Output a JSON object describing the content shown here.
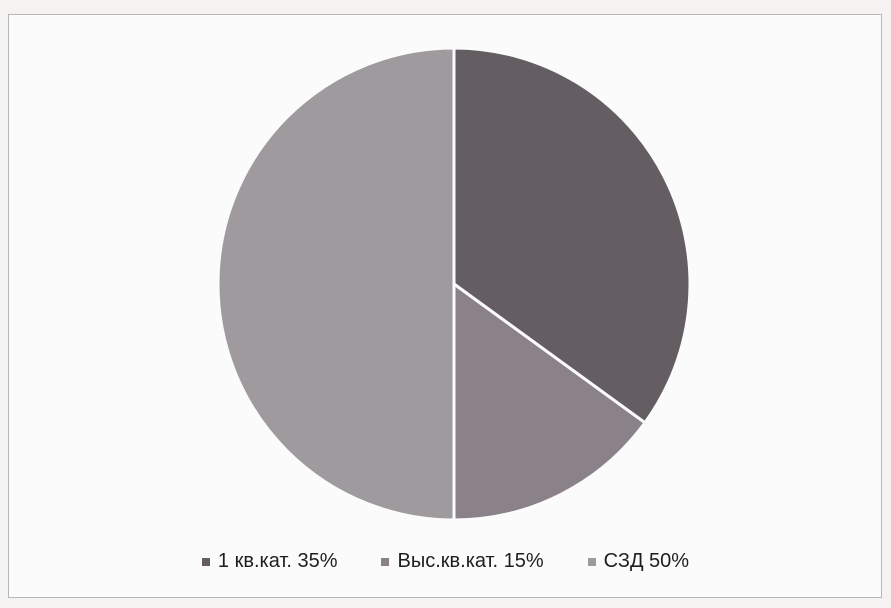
{
  "chart_data": {
    "type": "pie",
    "categories": [
      "1 кв.кат.",
      "Выс.кв.кат.",
      "СЗД"
    ],
    "values": [
      35,
      15,
      50
    ],
    "unit": "%",
    "colors": [
      "#645d62",
      "#8a8288",
      "#9e9a9d"
    ],
    "start_angle_deg": 0,
    "direction": "clockwise",
    "legend": {
      "position": "bottom",
      "items": [
        {
          "label": "1 кв.кат. 35%",
          "color": "#645d62"
        },
        {
          "label": "Выс.кв.кат. 15%",
          "color": "#8a8288"
        },
        {
          "label": "СЗД 50%",
          "color": "#9e9a9d"
        }
      ]
    }
  }
}
